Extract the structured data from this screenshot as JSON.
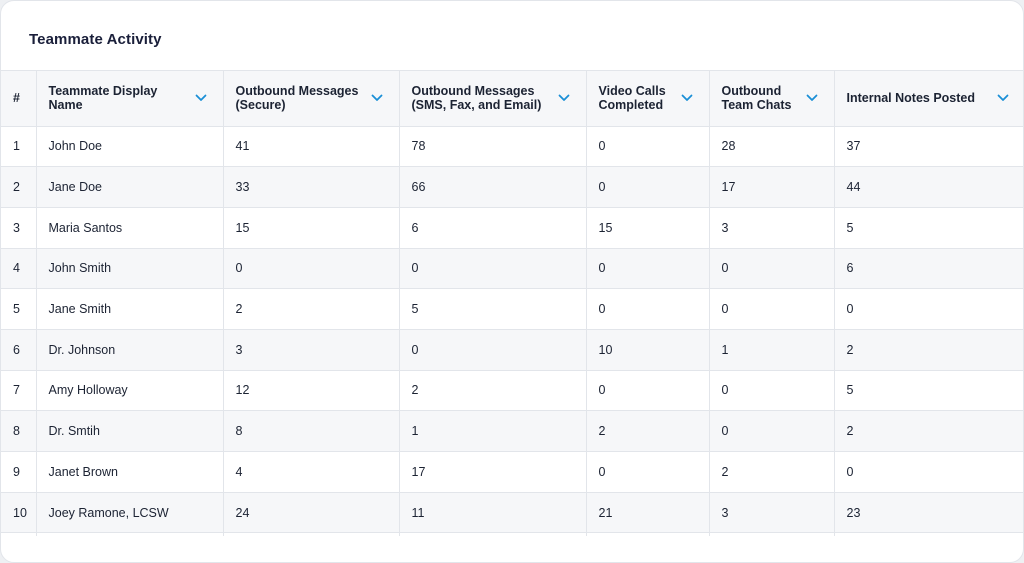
{
  "card": {
    "title": "Teammate Activity"
  },
  "table": {
    "columns": [
      {
        "label": "#",
        "sortable": false
      },
      {
        "label": "Teammate Display Name",
        "sortable": true
      },
      {
        "label": "Outbound Messages (Secure)",
        "sortable": true
      },
      {
        "label": "Outbound Messages (SMS, Fax, and Email)",
        "sortable": true
      },
      {
        "label": "Video Calls Completed",
        "sortable": true
      },
      {
        "label": "Outbound Team Chats",
        "sortable": true
      },
      {
        "label": "Internal Notes Posted",
        "sortable": true
      }
    ],
    "rows": [
      [
        "1",
        "John Doe",
        "41",
        "78",
        "0",
        "28",
        "37"
      ],
      [
        "2",
        "Jane Doe",
        "33",
        "66",
        "0",
        "17",
        "44"
      ],
      [
        "3",
        "Maria Santos",
        "15",
        "6",
        "15",
        "3",
        "5"
      ],
      [
        "4",
        "John Smith",
        "0",
        "0",
        "0",
        "0",
        "6"
      ],
      [
        "5",
        "Jane Smith",
        "2",
        "5",
        "0",
        "0",
        "0"
      ],
      [
        "6",
        "Dr. Johnson",
        "3",
        "0",
        "10",
        "1",
        "2"
      ],
      [
        "7",
        "Amy Holloway",
        "12",
        "2",
        "0",
        "0",
        "5"
      ],
      [
        "8",
        "Dr. Smtih",
        "8",
        "1",
        "2",
        "0",
        "2"
      ],
      [
        "9",
        "Janet Brown",
        "4",
        "17",
        "0",
        "2",
        "0"
      ],
      [
        "10",
        "Joey Ramone, LCSW",
        "24",
        "11",
        "21",
        "3",
        "23"
      ]
    ]
  },
  "icons": {
    "sort": "chevron-down-icon"
  },
  "colors": {
    "accent": "#1a8fd6",
    "header_bg": "#f6f7f9",
    "border": "#e2e5ea",
    "title": "#1a1f3a"
  }
}
